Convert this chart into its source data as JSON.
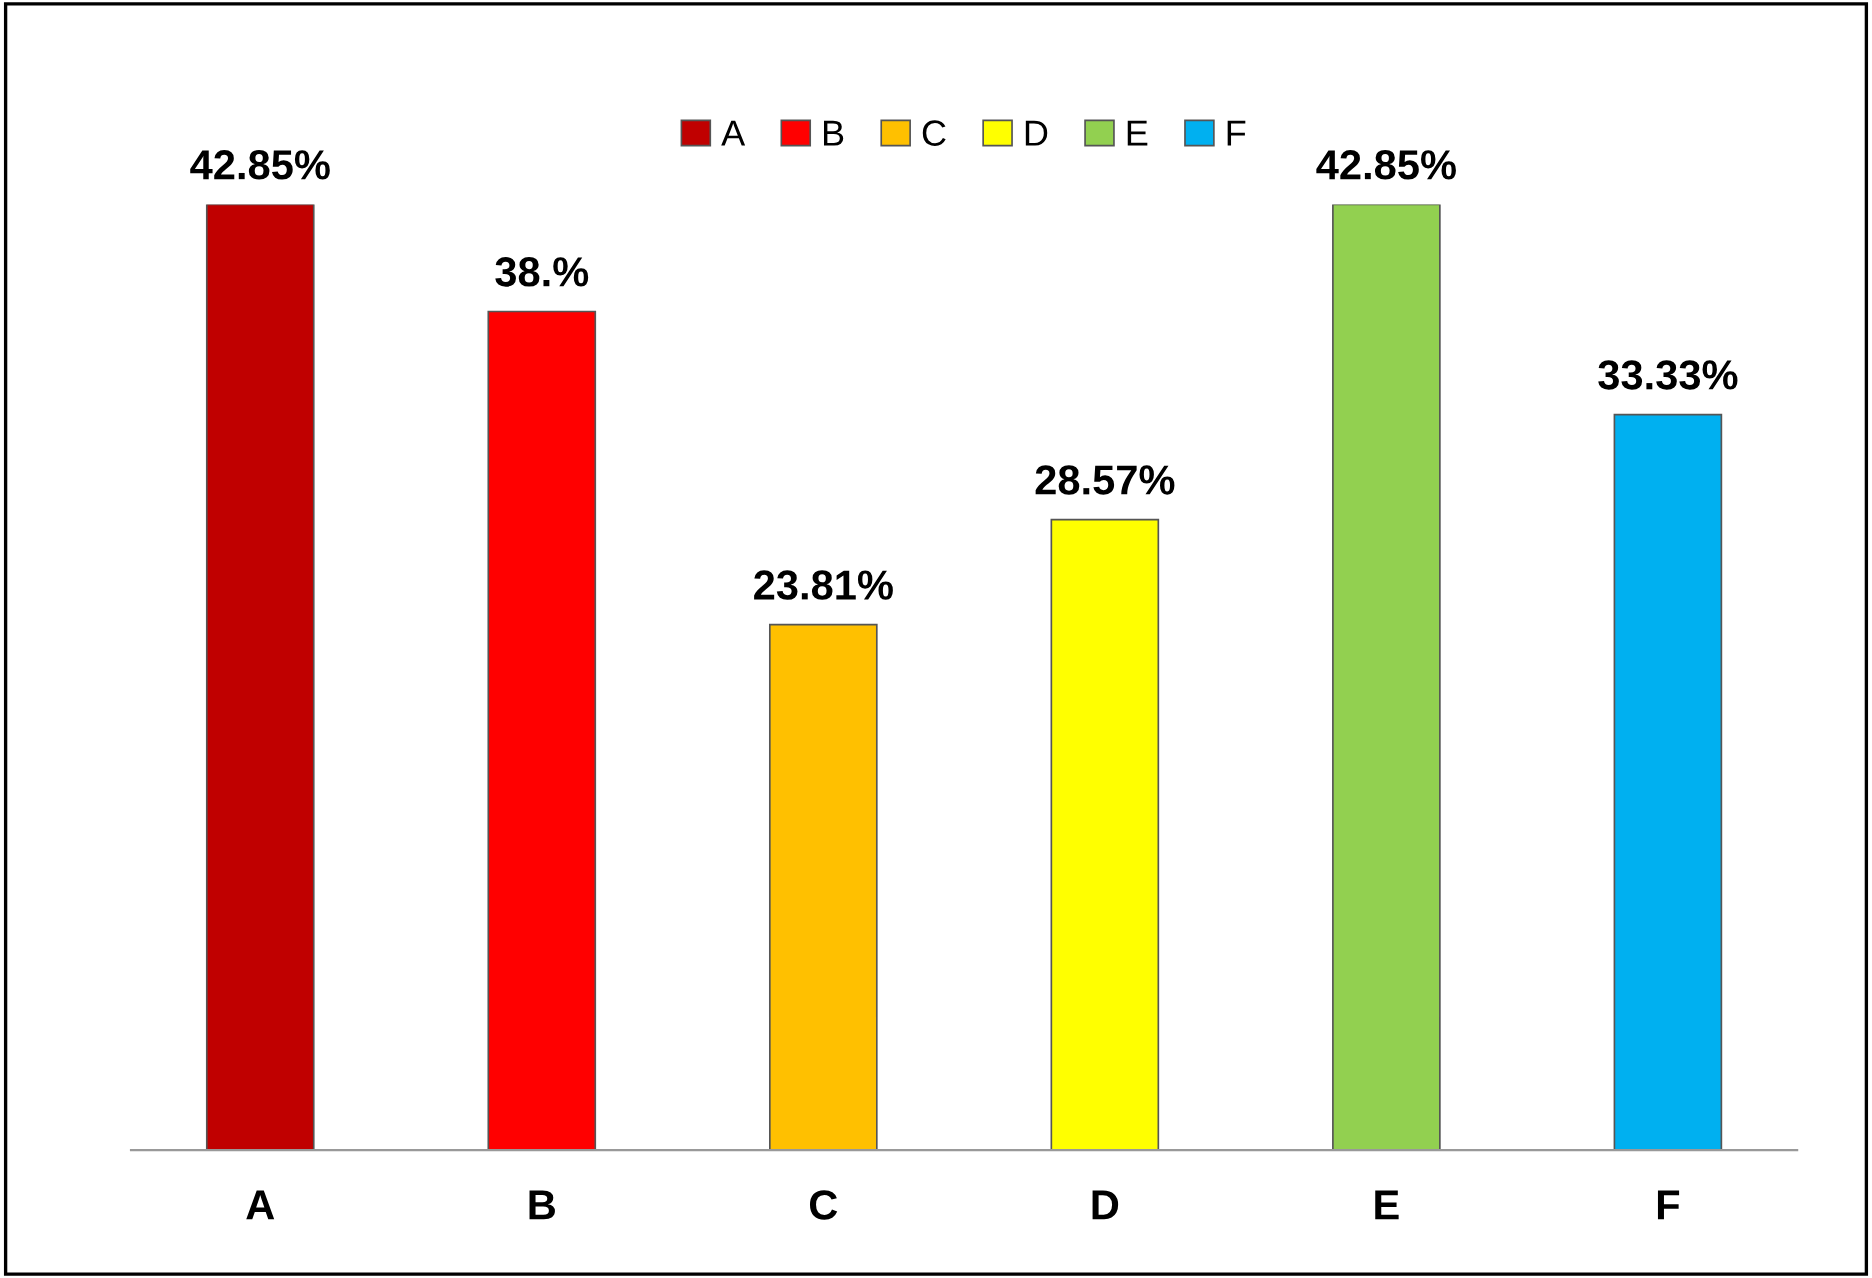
{
  "chart_data": {
    "type": "bar",
    "categories": [
      "A",
      "B",
      "C",
      "D",
      "E",
      "F"
    ],
    "series": [
      {
        "name": "A",
        "color": "#c00000",
        "values": [
          42.85,
          null,
          null,
          null,
          null,
          null
        ],
        "value_labels": [
          "42.85%",
          null,
          null,
          null,
          null,
          null
        ]
      },
      {
        "name": "B",
        "color": "#ff0000",
        "values": [
          null,
          38,
          null,
          null,
          null,
          null
        ],
        "value_labels": [
          null,
          "38.%",
          null,
          null,
          null,
          null
        ]
      },
      {
        "name": "C",
        "color": "#ffc000",
        "values": [
          null,
          null,
          23.81,
          null,
          null,
          null
        ],
        "value_labels": [
          null,
          null,
          "23.81%",
          null,
          null,
          null
        ]
      },
      {
        "name": "D",
        "color": "#ffff00",
        "values": [
          null,
          null,
          null,
          28.57,
          null,
          null
        ],
        "value_labels": [
          null,
          null,
          null,
          "28.57%",
          null,
          null
        ]
      },
      {
        "name": "E",
        "color": "#92d050",
        "values": [
          null,
          null,
          null,
          null,
          42.85,
          null
        ],
        "value_labels": [
          null,
          null,
          null,
          null,
          "42.85%",
          null
        ]
      },
      {
        "name": "F",
        "color": "#00b0f0",
        "values": [
          null,
          null,
          null,
          null,
          null,
          33.33
        ],
        "value_labels": [
          null,
          null,
          null,
          null,
          null,
          "33.33%"
        ]
      }
    ],
    "stacked": true,
    "legend": "top",
    "grid": false
  }
}
